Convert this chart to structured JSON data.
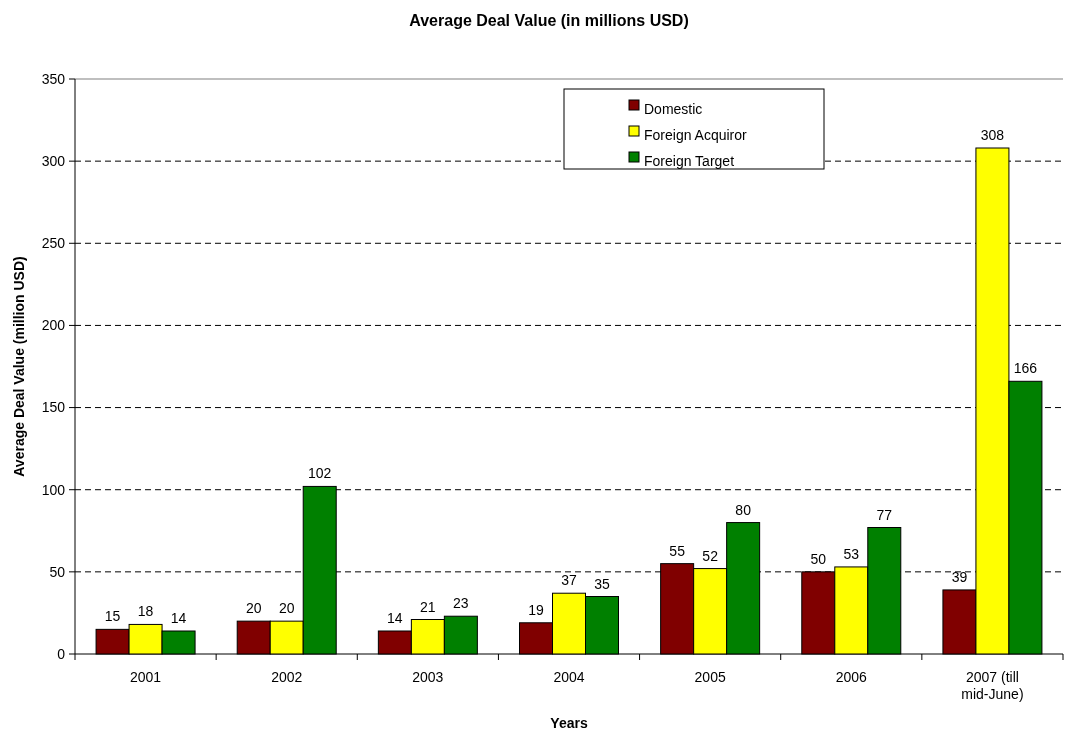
{
  "chart_data": {
    "type": "bar",
    "title": "Average Deal Value (in millions USD)",
    "xlabel": "Years",
    "ylabel": "Average Deal Value (million USD)",
    "categories": [
      "2001",
      "2002",
      "2003",
      "2004",
      "2005",
      "2006",
      "2007 (till mid-June)"
    ],
    "series": [
      {
        "name": "Domestic",
        "color": "#800000",
        "values": [
          15,
          20,
          14,
          19,
          55,
          50,
          39
        ]
      },
      {
        "name": "Foreign Acquiror",
        "color": "#ffff00",
        "values": [
          18,
          20,
          21,
          37,
          52,
          53,
          308
        ]
      },
      {
        "name": "Foreign Target",
        "color": "#008000",
        "values": [
          14,
          102,
          23,
          35,
          80,
          77,
          166
        ]
      }
    ],
    "ylim": [
      0,
      350
    ],
    "yticks": [
      0,
      50,
      100,
      150,
      200,
      250,
      300,
      350
    ],
    "grid": "y",
    "legend": "top",
    "data_labels": true
  }
}
